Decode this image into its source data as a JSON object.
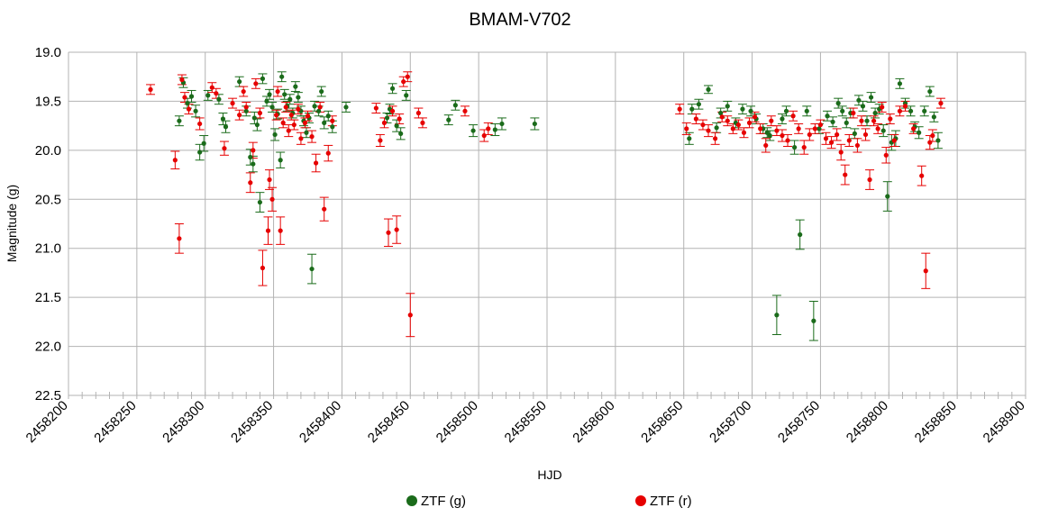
{
  "chart_data": {
    "type": "scatter",
    "title": "BMAM-V702",
    "xlabel": "HJD",
    "ylabel": "Magnitude (g)",
    "xlim": [
      2458200,
      2458900
    ],
    "ylim": [
      19.0,
      22.5
    ],
    "y_inverted": true,
    "x_ticks": [
      2458200,
      2458250,
      2458300,
      2458350,
      2458400,
      2458450,
      2458500,
      2458550,
      2458600,
      2458650,
      2458700,
      2458750,
      2458800,
      2458850,
      2458900
    ],
    "y_ticks": [
      19.0,
      19.5,
      20.0,
      20.5,
      21.0,
      21.5,
      22.0,
      22.5
    ],
    "y_tick_labels": [
      "19.0",
      "19.5",
      "20.0",
      "20.5",
      "21.0",
      "21.5",
      "22.0",
      "22.5"
    ],
    "grid": true,
    "legend_position": "bottom",
    "series": [
      {
        "name": "ZTF (g)",
        "color": "#1a6b1a",
        "points": [
          [
            2458281,
            19.7,
            0.05
          ],
          [
            2458284,
            19.31,
            0.05
          ],
          [
            2458287,
            19.52,
            0.05
          ],
          [
            2458290,
            19.45,
            0.06
          ],
          [
            2458293,
            19.6,
            0.06
          ],
          [
            2458296,
            20.02,
            0.08
          ],
          [
            2458299,
            19.93,
            0.08
          ],
          [
            2458302,
            19.44,
            0.05
          ],
          [
            2458310,
            19.48,
            0.05
          ],
          [
            2458313,
            19.68,
            0.06
          ],
          [
            2458315,
            19.76,
            0.06
          ],
          [
            2458325,
            19.3,
            0.05
          ],
          [
            2458330,
            19.6,
            0.05
          ],
          [
            2458333,
            20.07,
            0.08
          ],
          [
            2458335,
            20.14,
            0.08
          ],
          [
            2458336,
            19.67,
            0.06
          ],
          [
            2458338,
            19.74,
            0.06
          ],
          [
            2458340,
            20.53,
            0.1
          ],
          [
            2458342,
            19.27,
            0.05
          ],
          [
            2458345,
            19.5,
            0.05
          ],
          [
            2458347,
            19.43,
            0.05
          ],
          [
            2458349,
            19.56,
            0.05
          ],
          [
            2458351,
            19.84,
            0.06
          ],
          [
            2458353,
            19.63,
            0.05
          ],
          [
            2458355,
            20.1,
            0.08
          ],
          [
            2458356,
            19.25,
            0.05
          ],
          [
            2458358,
            19.43,
            0.05
          ],
          [
            2458360,
            19.55,
            0.05
          ],
          [
            2458362,
            19.48,
            0.05
          ],
          [
            2458364,
            19.62,
            0.05
          ],
          [
            2458366,
            19.35,
            0.05
          ],
          [
            2458368,
            19.46,
            0.05
          ],
          [
            2458370,
            19.6,
            0.05
          ],
          [
            2458372,
            19.7,
            0.05
          ],
          [
            2458374,
            19.82,
            0.05
          ],
          [
            2458376,
            19.67,
            0.05
          ],
          [
            2458378,
            21.21,
            0.15
          ],
          [
            2458380,
            19.55,
            0.05
          ],
          [
            2458383,
            19.6,
            0.05
          ],
          [
            2458385,
            19.4,
            0.05
          ],
          [
            2458387,
            19.72,
            0.06
          ],
          [
            2458390,
            19.65,
            0.05
          ],
          [
            2458393,
            19.76,
            0.06
          ],
          [
            2458403,
            19.56,
            0.05
          ],
          [
            2458433,
            19.67,
            0.05
          ],
          [
            2458435,
            19.58,
            0.05
          ],
          [
            2458437,
            19.37,
            0.05
          ],
          [
            2458440,
            19.75,
            0.06
          ],
          [
            2458443,
            19.83,
            0.06
          ],
          [
            2458447,
            19.44,
            0.05
          ],
          [
            2458478,
            19.69,
            0.05
          ],
          [
            2458483,
            19.54,
            0.05
          ],
          [
            2458496,
            19.8,
            0.06
          ],
          [
            2458512,
            19.79,
            0.06
          ],
          [
            2458517,
            19.73,
            0.06
          ],
          [
            2458541,
            19.73,
            0.06
          ],
          [
            2458654,
            19.88,
            0.06
          ],
          [
            2458656,
            19.58,
            0.05
          ],
          [
            2458661,
            19.53,
            0.05
          ],
          [
            2458668,
            19.38,
            0.04
          ],
          [
            2458674,
            19.77,
            0.05
          ],
          [
            2458677,
            19.62,
            0.05
          ],
          [
            2458682,
            19.55,
            0.05
          ],
          [
            2458688,
            19.72,
            0.05
          ],
          [
            2458693,
            19.58,
            0.05
          ],
          [
            2458699,
            19.6,
            0.05
          ],
          [
            2458703,
            19.68,
            0.05
          ],
          [
            2458708,
            19.78,
            0.05
          ],
          [
            2458711,
            19.82,
            0.05
          ],
          [
            2458713,
            19.85,
            0.05
          ],
          [
            2458718,
            21.68,
            0.2
          ],
          [
            2458722,
            19.68,
            0.05
          ],
          [
            2458725,
            19.6,
            0.05
          ],
          [
            2458731,
            19.97,
            0.07
          ],
          [
            2458735,
            20.86,
            0.15
          ],
          [
            2458740,
            19.6,
            0.05
          ],
          [
            2458745,
            21.74,
            0.2
          ],
          [
            2458749,
            19.78,
            0.05
          ],
          [
            2458755,
            19.65,
            0.05
          ],
          [
            2458759,
            19.71,
            0.05
          ],
          [
            2458763,
            19.52,
            0.05
          ],
          [
            2458766,
            19.6,
            0.05
          ],
          [
            2458769,
            19.72,
            0.05
          ],
          [
            2458772,
            19.62,
            0.05
          ],
          [
            2458775,
            19.83,
            0.05
          ],
          [
            2458778,
            19.49,
            0.05
          ],
          [
            2458781,
            19.55,
            0.05
          ],
          [
            2458784,
            19.7,
            0.05
          ],
          [
            2458787,
            19.46,
            0.05
          ],
          [
            2458790,
            19.62,
            0.05
          ],
          [
            2458793,
            19.58,
            0.05
          ],
          [
            2458796,
            19.8,
            0.06
          ],
          [
            2458799,
            20.47,
            0.15
          ],
          [
            2458802,
            19.92,
            0.08
          ],
          [
            2458805,
            19.88,
            0.08
          ],
          [
            2458808,
            19.32,
            0.05
          ],
          [
            2458812,
            19.52,
            0.05
          ],
          [
            2458816,
            19.6,
            0.05
          ],
          [
            2458819,
            19.76,
            0.05
          ],
          [
            2458822,
            19.82,
            0.06
          ],
          [
            2458826,
            19.6,
            0.05
          ],
          [
            2458830,
            19.4,
            0.05
          ],
          [
            2458833,
            19.66,
            0.05
          ],
          [
            2458836,
            19.9,
            0.08
          ]
        ]
      },
      {
        "name": "ZTF (r)",
        "color": "#e60000",
        "points": [
          [
            2458260,
            19.38,
            0.05
          ],
          [
            2458278,
            20.1,
            0.09
          ],
          [
            2458281,
            20.9,
            0.15
          ],
          [
            2458283,
            19.28,
            0.05
          ],
          [
            2458285,
            19.46,
            0.05
          ],
          [
            2458288,
            19.58,
            0.05
          ],
          [
            2458296,
            19.73,
            0.06
          ],
          [
            2458305,
            19.36,
            0.05
          ],
          [
            2458308,
            19.42,
            0.05
          ],
          [
            2458314,
            19.98,
            0.07
          ],
          [
            2458320,
            19.52,
            0.05
          ],
          [
            2458325,
            19.64,
            0.05
          ],
          [
            2458328,
            19.4,
            0.05
          ],
          [
            2458330,
            19.56,
            0.05
          ],
          [
            2458333,
            20.33,
            0.1
          ],
          [
            2458335,
            20.0,
            0.08
          ],
          [
            2458337,
            19.32,
            0.05
          ],
          [
            2458340,
            19.62,
            0.05
          ],
          [
            2458342,
            21.2,
            0.18
          ],
          [
            2458346,
            20.82,
            0.14
          ],
          [
            2458347,
            20.3,
            0.1
          ],
          [
            2458349,
            20.5,
            0.12
          ],
          [
            2458352,
            19.64,
            0.05
          ],
          [
            2458353,
            19.4,
            0.05
          ],
          [
            2458355,
            20.82,
            0.14
          ],
          [
            2458357,
            19.72,
            0.05
          ],
          [
            2458359,
            19.56,
            0.05
          ],
          [
            2458361,
            19.8,
            0.06
          ],
          [
            2458363,
            19.64,
            0.05
          ],
          [
            2458365,
            19.74,
            0.05
          ],
          [
            2458368,
            19.58,
            0.05
          ],
          [
            2458370,
            19.88,
            0.06
          ],
          [
            2458373,
            19.72,
            0.05
          ],
          [
            2458375,
            19.65,
            0.05
          ],
          [
            2458378,
            19.86,
            0.06
          ],
          [
            2458381,
            20.13,
            0.09
          ],
          [
            2458384,
            19.56,
            0.05
          ],
          [
            2458387,
            20.6,
            0.12
          ],
          [
            2458390,
            20.03,
            0.08
          ],
          [
            2458393,
            19.7,
            0.05
          ],
          [
            2458425,
            19.57,
            0.05
          ],
          [
            2458428,
            19.9,
            0.06
          ],
          [
            2458431,
            19.72,
            0.05
          ],
          [
            2458434,
            20.84,
            0.14
          ],
          [
            2458437,
            19.6,
            0.05
          ],
          [
            2458440,
            20.81,
            0.14
          ],
          [
            2458442,
            19.68,
            0.05
          ],
          [
            2458445,
            19.3,
            0.05
          ],
          [
            2458448,
            19.25,
            0.05
          ],
          [
            2458450,
            21.68,
            0.22
          ],
          [
            2458456,
            19.62,
            0.05
          ],
          [
            2458459,
            19.72,
            0.05
          ],
          [
            2458490,
            19.6,
            0.05
          ],
          [
            2458504,
            19.85,
            0.06
          ],
          [
            2458507,
            19.78,
            0.06
          ],
          [
            2458647,
            19.58,
            0.05
          ],
          [
            2458652,
            19.78,
            0.06
          ],
          [
            2458659,
            19.68,
            0.05
          ],
          [
            2458664,
            19.74,
            0.05
          ],
          [
            2458668,
            19.8,
            0.06
          ],
          [
            2458673,
            19.88,
            0.06
          ],
          [
            2458678,
            19.66,
            0.05
          ],
          [
            2458682,
            19.7,
            0.05
          ],
          [
            2458686,
            19.78,
            0.05
          ],
          [
            2458690,
            19.74,
            0.05
          ],
          [
            2458694,
            19.82,
            0.05
          ],
          [
            2458698,
            19.72,
            0.05
          ],
          [
            2458702,
            19.66,
            0.05
          ],
          [
            2458706,
            19.78,
            0.05
          ],
          [
            2458710,
            19.95,
            0.07
          ],
          [
            2458714,
            19.7,
            0.05
          ],
          [
            2458718,
            19.8,
            0.05
          ],
          [
            2458722,
            19.85,
            0.06
          ],
          [
            2458726,
            19.9,
            0.06
          ],
          [
            2458730,
            19.65,
            0.05
          ],
          [
            2458734,
            19.78,
            0.05
          ],
          [
            2458738,
            19.97,
            0.07
          ],
          [
            2458742,
            19.84,
            0.06
          ],
          [
            2458746,
            19.78,
            0.05
          ],
          [
            2458750,
            19.74,
            0.05
          ],
          [
            2458754,
            19.88,
            0.06
          ],
          [
            2458758,
            19.92,
            0.06
          ],
          [
            2458762,
            19.84,
            0.06
          ],
          [
            2458765,
            20.02,
            0.08
          ],
          [
            2458768,
            20.25,
            0.1
          ],
          [
            2458771,
            19.9,
            0.06
          ],
          [
            2458774,
            19.62,
            0.05
          ],
          [
            2458777,
            19.95,
            0.07
          ],
          [
            2458780,
            19.7,
            0.05
          ],
          [
            2458783,
            19.84,
            0.06
          ],
          [
            2458786,
            20.3,
            0.1
          ],
          [
            2458789,
            19.7,
            0.05
          ],
          [
            2458792,
            19.78,
            0.05
          ],
          [
            2458795,
            19.56,
            0.05
          ],
          [
            2458798,
            20.05,
            0.08
          ],
          [
            2458801,
            19.68,
            0.05
          ],
          [
            2458804,
            19.9,
            0.06
          ],
          [
            2458808,
            19.6,
            0.05
          ],
          [
            2458812,
            19.55,
            0.05
          ],
          [
            2458818,
            19.78,
            0.05
          ],
          [
            2458824,
            20.26,
            0.1
          ],
          [
            2458827,
            21.23,
            0.18
          ],
          [
            2458830,
            19.92,
            0.07
          ],
          [
            2458832,
            19.85,
            0.06
          ],
          [
            2458838,
            19.52,
            0.05
          ]
        ]
      }
    ]
  }
}
